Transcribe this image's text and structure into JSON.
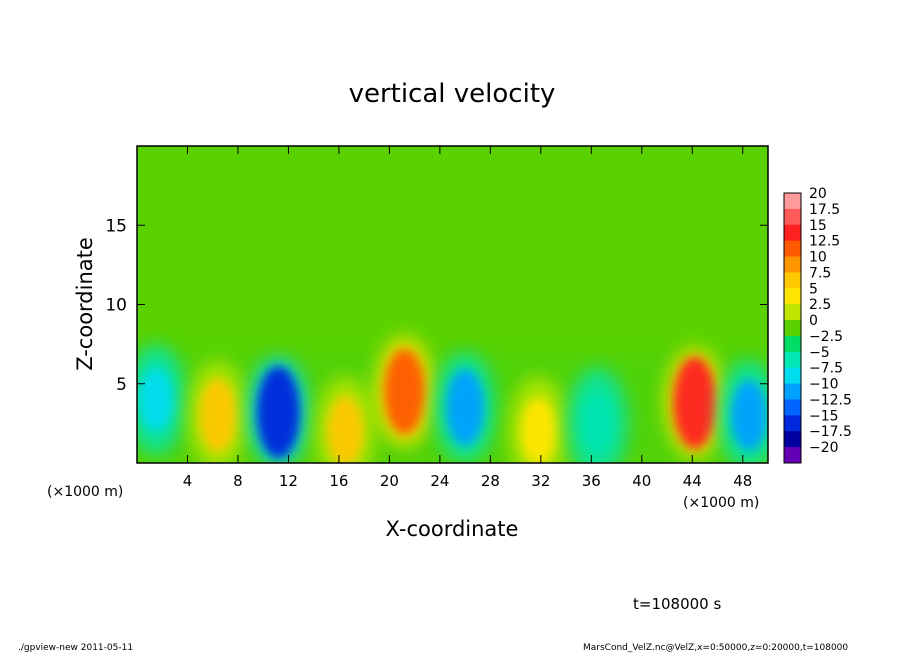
{
  "chart_data": {
    "type": "heatmap",
    "title": "vertical velocity",
    "xlabel": "X-coordinate",
    "ylabel": "Z-coordinate",
    "x_unit_label": "(×1000 m)",
    "x_unit_label_right": "(×1000 m)",
    "xlim": [
      0,
      50
    ],
    "ylim": [
      0,
      20
    ],
    "x_ticks": [
      "4",
      "8",
      "12",
      "16",
      "20",
      "24",
      "28",
      "32",
      "36",
      "40",
      "44",
      "48"
    ],
    "y_ticks": [
      "5",
      "10",
      "15"
    ],
    "colorbar_levels": [
      "20",
      "17.5",
      "15",
      "12.5",
      "10",
      "7.5",
      "5",
      "2.5",
      "0",
      "−2.5",
      "−5",
      "−7.5",
      "−10",
      "−12.5",
      "−15",
      "−17.5",
      "−20"
    ],
    "colorbar_colors": [
      "#ff9a9a",
      "#ff5a5a",
      "#ff2020",
      "#ff5a00",
      "#ff9600",
      "#ffc800",
      "#ffe600",
      "#bee600",
      "#5ad200",
      "#00dc64",
      "#00e6b4",
      "#00dcf0",
      "#00a0ff",
      "#0064ff",
      "#0028dc",
      "#0000a0",
      "#6400b4"
    ],
    "features": [
      {
        "x": 1.5,
        "z": 4,
        "w": -6
      },
      {
        "x": 6.4,
        "z": 3,
        "w": 9
      },
      {
        "x": 11.2,
        "z": 3.2,
        "w": -15
      },
      {
        "x": 16.5,
        "z": 2,
        "w": 8
      },
      {
        "x": 21.2,
        "z": 4.5,
        "w": 13
      },
      {
        "x": 26,
        "z": 3.5,
        "w": -10
      },
      {
        "x": 31.8,
        "z": 2,
        "w": 7
      },
      {
        "x": 36.5,
        "z": 2.5,
        "w": -4
      },
      {
        "x": 44.2,
        "z": 3.8,
        "w": 15
      },
      {
        "x": 48.5,
        "z": 3,
        "w": -8
      }
    ],
    "grid": false,
    "legend": "colorbar-right"
  },
  "time_label": "t=108000 s",
  "footer": {
    "left": "./gpview-new   2011-05-11",
    "right": "MarsCond_VelZ.nc@VelZ,x=0:50000,z=0:20000,t=108000"
  }
}
